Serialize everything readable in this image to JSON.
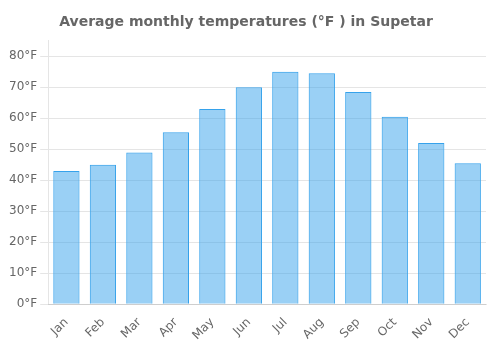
{
  "chart_data": {
    "type": "bar",
    "title": "Average monthly temperatures (°F ) in Supetar",
    "categories": [
      "Jan",
      "Feb",
      "Mar",
      "Apr",
      "May",
      "Jun",
      "Jul",
      "Aug",
      "Sep",
      "Oct",
      "Nov",
      "Dec"
    ],
    "values": [
      43.0,
      45.0,
      49.0,
      55.5,
      63.0,
      70.0,
      75.0,
      74.5,
      68.5,
      60.5,
      52.0,
      45.5
    ],
    "ylim": [
      0,
      85
    ],
    "yticks": [
      {
        "value": 0,
        "label": "0°F"
      },
      {
        "value": 10,
        "label": "10°F"
      },
      {
        "value": 20,
        "label": "20°F"
      },
      {
        "value": 30,
        "label": "30°F"
      },
      {
        "value": 40,
        "label": "40°F"
      },
      {
        "value": 50,
        "label": "50°F"
      },
      {
        "value": 60,
        "label": "60°F"
      },
      {
        "value": 70,
        "label": "70°F"
      },
      {
        "value": 80,
        "label": "80°F"
      }
    ],
    "grid": true
  }
}
